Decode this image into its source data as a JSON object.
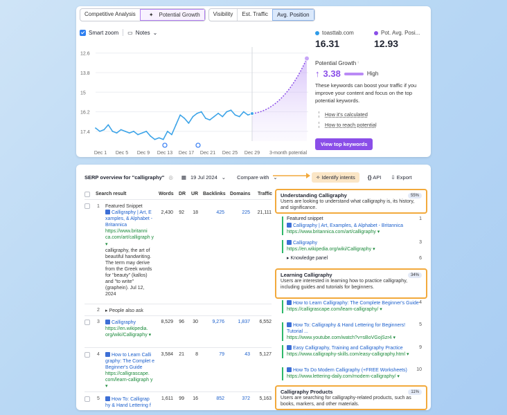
{
  "tabs_left": [
    "Competitive Analysis",
    "Potential Growth"
  ],
  "tabs_right": [
    "Visibility",
    "Est. Traffic",
    "Avg. Position"
  ],
  "toolbar": {
    "smart_zoom": "Smart zoom",
    "notes": "Notes"
  },
  "chart_data": {
    "type": "line",
    "title": "",
    "xlabel": "",
    "ylabel": "",
    "y_ticks": [
      "12.6",
      "13.8",
      "15",
      "16.2",
      "17.4"
    ],
    "x_ticks": [
      "Dec 1",
      "Dec 5",
      "Dec 9",
      "Dec 13",
      "Dec 17",
      "Dec 21",
      "Dec 25",
      "Dec 29",
      "3-month potential"
    ],
    "ylim": [
      18.0,
      12.4
    ],
    "reversed_y": true,
    "series": [
      {
        "values": [
          17.2,
          17.4,
          17.3,
          17.0,
          17.4,
          17.5,
          17.3,
          17.4,
          17.5,
          17.4,
          17.6,
          17.5,
          17.4,
          17.7,
          17.9,
          17.8,
          17.9,
          17.4,
          17.6,
          17.0,
          16.4,
          16.6,
          16.9,
          16.5,
          16.3,
          16.2,
          16.6,
          16.7,
          16.5,
          16.3,
          16.5,
          16.2,
          16.1,
          16.4,
          16.5,
          16.2,
          16.4,
          16.31
        ]
      }
    ],
    "projection_end": 12.93,
    "colors": {
      "line": "#3da4e8",
      "projection": "#8a4ee8"
    }
  },
  "metrics": {
    "domain_name": "toasttab.com",
    "domain_value": "16.31",
    "pot_name": "Pot. Avg. Posi...",
    "pot_value": "12.93"
  },
  "potential": {
    "label": "Potential Growth",
    "value": "3.38",
    "level": "High",
    "desc": "These keywords can boost your traffic if you improve your content and focus on the top potential keywords.",
    "links": [
      "How it's calculated",
      "How to reach potential"
    ],
    "button": "View top keywords"
  },
  "serp": {
    "title": "SERP overview for \"calligraphy\"",
    "date": "19 Jul 2024",
    "compare": "Compare with",
    "identify": "Identify intents",
    "api": "API",
    "export": "Export",
    "columns": [
      "Search result",
      "Words",
      "DR",
      "UR",
      "Backlinks",
      "Domains",
      "Traffic"
    ],
    "rows": [
      {
        "num": "1",
        "label": "Featured Snippet",
        "link": "Calligraphy | Art, E xamples, & Alphabet - Britannica",
        "url": "https://www.britanni ca.com/art/calligraph y",
        "snippet": "calligraphy, the art of beautiful handwriting. The term may derive from the Greek words for \"beauty\" (kallos) and \"to write\" (graphein). Jul 12, 2024",
        "words": "2,430",
        "dr": "92",
        "ur": "18",
        "backlinks": "425",
        "domains": "225",
        "traffic": "21,111"
      },
      {
        "num": "2",
        "label": "People also ask"
      },
      {
        "num": "3",
        "link": "Calligraphy",
        "url": "https://en.wikipedia. org/wiki/Calligraphy",
        "words": "8,529",
        "dr": "96",
        "ur": "30",
        "backlinks": "9,276",
        "domains": "1,837",
        "traffic": "6,552"
      },
      {
        "num": "4",
        "link": "How to Learn Calli graphy: The Complet e Beginner's Guide",
        "url": "https://calligrascape. com/learn-calligraph y",
        "words": "3,584",
        "dr": "21",
        "ur": "8",
        "backlinks": "79",
        "domains": "43",
        "traffic": "5,127"
      },
      {
        "num": "5",
        "link": "How To: Calligrap hy & Hand Lettering f",
        "words": "1,611",
        "dr": "99",
        "ur": "16",
        "backlinks": "852",
        "domains": "372",
        "traffic": "5,163"
      }
    ]
  },
  "intents": [
    {
      "title": "Understanding Calligraphy",
      "pct": "55%",
      "desc": "Users are looking to understand what calligraphy is, its history, and significance.",
      "items": [
        {
          "label": "Featured snippet",
          "pos": "1",
          "link": "Calligraphy | Art, Examples, & Alphabet - Britannica",
          "url": "https://www.britannica.com/art/calligraphy"
        },
        {
          "link": "Calligraphy",
          "pos": "3",
          "url": "https://en.wikipedia.org/wiki/Calligraphy"
        },
        {
          "label": "Knowledge panel",
          "pos": "6"
        }
      ]
    },
    {
      "title": "Learning Calligraphy",
      "pct": "34%",
      "desc": "Users are interested in learning how to practice calligraphy, including guides and tutorials for beginners.",
      "items": [
        {
          "link": "How to Learn Calligraphy: The Complete Beginner's Guide",
          "pos": "4",
          "url": "https://calligrascape.com/learn-calligraphy/"
        },
        {
          "link": "How To: Calligraphy & Hand Lettering for Beginners! Tutorial ...",
          "pos": "5",
          "url": "https://www.youtube.com/watch?v=sBoVGojSzr4"
        },
        {
          "link": "Easy Calligraphy, Training and Calligraphy Practice",
          "pos": "9",
          "url": "https://www.calligraphy-skills.com/easy-calligraphy.html"
        },
        {
          "link": "How To Do Modern Calligraphy (+FREE Worksheets)",
          "pos": "10",
          "url": "https://www.lettering-daily.com/modern-calligraphy/"
        }
      ]
    },
    {
      "title": "Calligraphy Products",
      "pct": "11%",
      "desc": "Users are searching for calligraphy-related products, such as books, markers, and other materials."
    }
  ]
}
